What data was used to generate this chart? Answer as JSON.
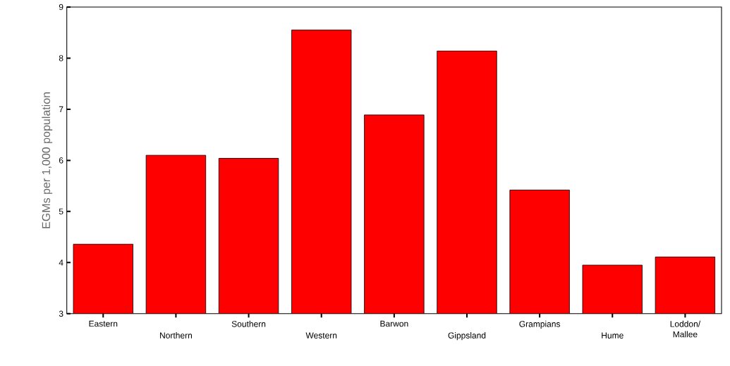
{
  "chart_data": {
    "type": "bar",
    "ylabel": "EGMs per 1,000 population",
    "categories": [
      "Eastern",
      "Northern",
      "Southern",
      "Western",
      "Barwon",
      "Gippsland",
      "Grampians",
      "Hume",
      "Loddon/ Mallee"
    ],
    "values": [
      4.36,
      6.1,
      6.04,
      8.55,
      6.89,
      8.14,
      5.42,
      3.95,
      4.11
    ],
    "color": "#ff0000",
    "ylim": [
      3,
      9
    ],
    "yticks": [
      3,
      4,
      5,
      6,
      7,
      8,
      9
    ]
  }
}
